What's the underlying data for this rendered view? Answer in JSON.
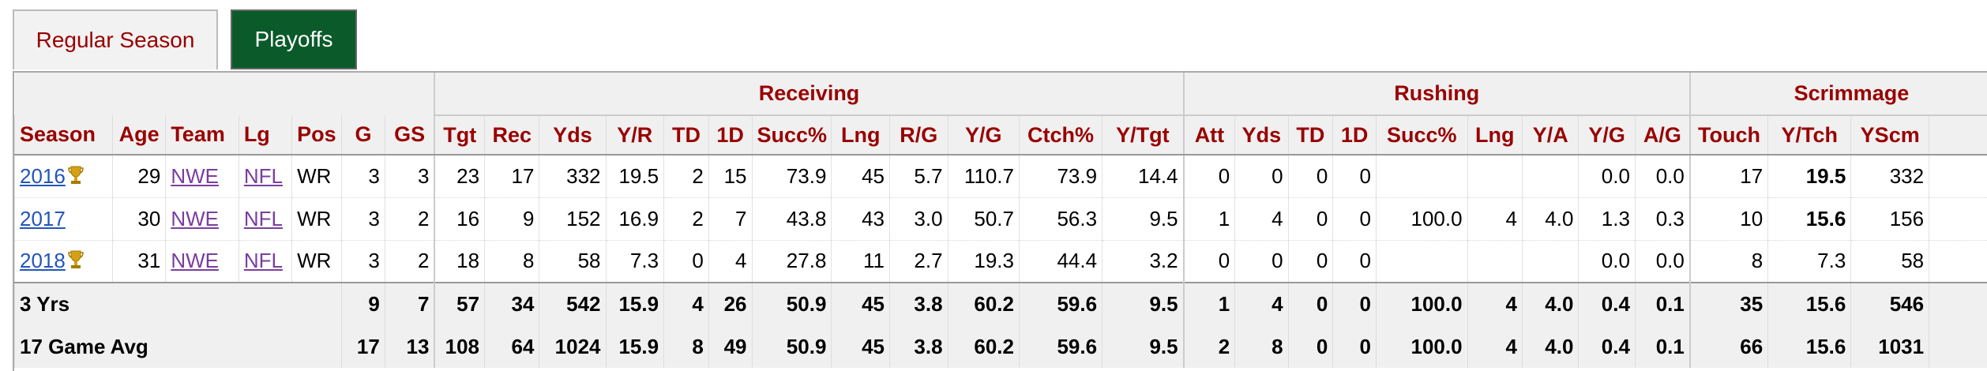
{
  "tabs": [
    {
      "label": "Regular Season",
      "active": false
    },
    {
      "label": "Playoffs",
      "active": true
    }
  ],
  "groups": {
    "receiving": "Receiving",
    "rushing": "Rushing",
    "scrimmage": "Scrimmage"
  },
  "columns": [
    "Season",
    "Age",
    "Team",
    "Lg",
    "Pos",
    "G",
    "GS",
    "Tgt",
    "Rec",
    "Yds",
    "Y/R",
    "TD",
    "1D",
    "Succ%",
    "Lng",
    "R/G",
    "Y/G",
    "Ctch%",
    "Y/Tgt",
    "Att",
    "Yds",
    "TD",
    "1D",
    "Succ%",
    "Lng",
    "Y/A",
    "Y/G",
    "A/G",
    "Touch",
    "Y/Tch",
    "YScm"
  ],
  "rows": [
    {
      "season": "2016",
      "trophy": true,
      "age": "29",
      "team": "NWE",
      "lg": "NFL",
      "pos": "WR",
      "g": "3",
      "gs": "3",
      "tgt": "23",
      "rec": "17",
      "yds": "332",
      "yr": "19.5",
      "td": "2",
      "fd": "15",
      "succ": "73.9",
      "lng": "45",
      "rg": "5.7",
      "yg": "110.7",
      "ctch": "73.9",
      "ytgt": "14.4",
      "att": "0",
      "ryds": "0",
      "rtd": "0",
      "rfd": "0",
      "rsucc": "",
      "rlng": "",
      "ya": "",
      "ryg": "0.0",
      "ag": "0.0",
      "touch": "17",
      "ytch": "19.5",
      "yscm": "332",
      "ytch_bold": true
    },
    {
      "season": "2017",
      "trophy": false,
      "age": "30",
      "team": "NWE",
      "lg": "NFL",
      "pos": "WR",
      "g": "3",
      "gs": "2",
      "tgt": "16",
      "rec": "9",
      "yds": "152",
      "yr": "16.9",
      "td": "2",
      "fd": "7",
      "succ": "43.8",
      "lng": "43",
      "rg": "3.0",
      "yg": "50.7",
      "ctch": "56.3",
      "ytgt": "9.5",
      "att": "1",
      "ryds": "4",
      "rtd": "0",
      "rfd": "0",
      "rsucc": "100.0",
      "rlng": "4",
      "ya": "4.0",
      "ryg": "1.3",
      "ag": "0.3",
      "touch": "10",
      "ytch": "15.6",
      "yscm": "156",
      "ytch_bold": true
    },
    {
      "season": "2018",
      "trophy": true,
      "age": "31",
      "team": "NWE",
      "lg": "NFL",
      "pos": "WR",
      "g": "3",
      "gs": "2",
      "tgt": "18",
      "rec": "8",
      "yds": "58",
      "yr": "7.3",
      "td": "0",
      "fd": "4",
      "succ": "27.8",
      "lng": "11",
      "rg": "2.7",
      "yg": "19.3",
      "ctch": "44.4",
      "ytgt": "3.2",
      "att": "0",
      "ryds": "0",
      "rtd": "0",
      "rfd": "0",
      "rsucc": "",
      "rlng": "",
      "ya": "",
      "ryg": "0.0",
      "ag": "0.0",
      "touch": "8",
      "ytch": "7.3",
      "yscm": "58",
      "ytch_bold": false
    }
  ],
  "totals": [
    {
      "label": "3 Yrs",
      "g": "9",
      "gs": "7",
      "tgt": "57",
      "rec": "34",
      "yds": "542",
      "yr": "15.9",
      "td": "4",
      "fd": "26",
      "succ": "50.9",
      "lng": "45",
      "rg": "3.8",
      "yg": "60.2",
      "ctch": "59.6",
      "ytgt": "9.5",
      "att": "1",
      "ryds": "4",
      "rtd": "0",
      "rfd": "0",
      "rsucc": "100.0",
      "rlng": "4",
      "ya": "4.0",
      "ryg": "0.4",
      "ag": "0.1",
      "touch": "35",
      "ytch": "15.6",
      "yscm": "546"
    },
    {
      "label": "17 Game Avg",
      "g": "17",
      "gs": "13",
      "tgt": "108",
      "rec": "64",
      "yds": "1024",
      "yr": "15.9",
      "td": "8",
      "fd": "49",
      "succ": "50.9",
      "lng": "45",
      "rg": "3.8",
      "yg": "60.2",
      "ctch": "59.6",
      "ytgt": "9.5",
      "att": "2",
      "ryds": "8",
      "rtd": "0",
      "rfd": "0",
      "rsucc": "100.0",
      "rlng": "4",
      "ya": "4.0",
      "ryg": "0.4",
      "ag": "0.1",
      "touch": "66",
      "ytch": "15.6",
      "yscm": "1031"
    }
  ],
  "colors": {
    "accent": "#990000",
    "active_tab": "#0a5a2a",
    "link": "#2255bb",
    "visited": "#7a3e9e"
  },
  "icons": {
    "champion": "trophy-icon"
  }
}
